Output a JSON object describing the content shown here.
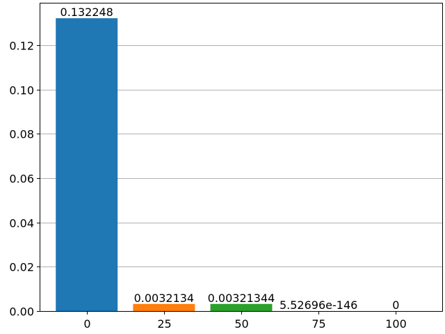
{
  "chart_data": {
    "type": "bar",
    "categories": [
      "0",
      "25",
      "50",
      "75",
      "100"
    ],
    "x": [
      0,
      25,
      50,
      75,
      100
    ],
    "values": [
      0.132248,
      0.0032134,
      0.00321344,
      5.52696e-146,
      0
    ],
    "data_labels": [
      "0.132248",
      "0.0032134",
      "0.00321344",
      "5.52696e-146",
      "0"
    ],
    "colors": [
      "#1f77b4",
      "#ff7f0e",
      "#2ca02c",
      "#d62728",
      "#9467bd"
    ],
    "title": "",
    "xlabel": "",
    "ylabel": "",
    "xlim": [
      -15,
      115
    ],
    "ylim": [
      0,
      0.1389
    ],
    "yticks": [
      0.0,
      0.02,
      0.04,
      0.06,
      0.08,
      0.1,
      0.12
    ],
    "ytick_labels": [
      "0.00",
      "0.02",
      "0.04",
      "0.06",
      "0.08",
      "0.10",
      "0.12"
    ],
    "xticks": [
      0,
      25,
      50,
      75,
      100
    ],
    "xtick_labels": [
      "0",
      "25",
      "50",
      "75",
      "100"
    ],
    "bar_width": 20,
    "grid": "y-axis only",
    "legend": "none"
  }
}
